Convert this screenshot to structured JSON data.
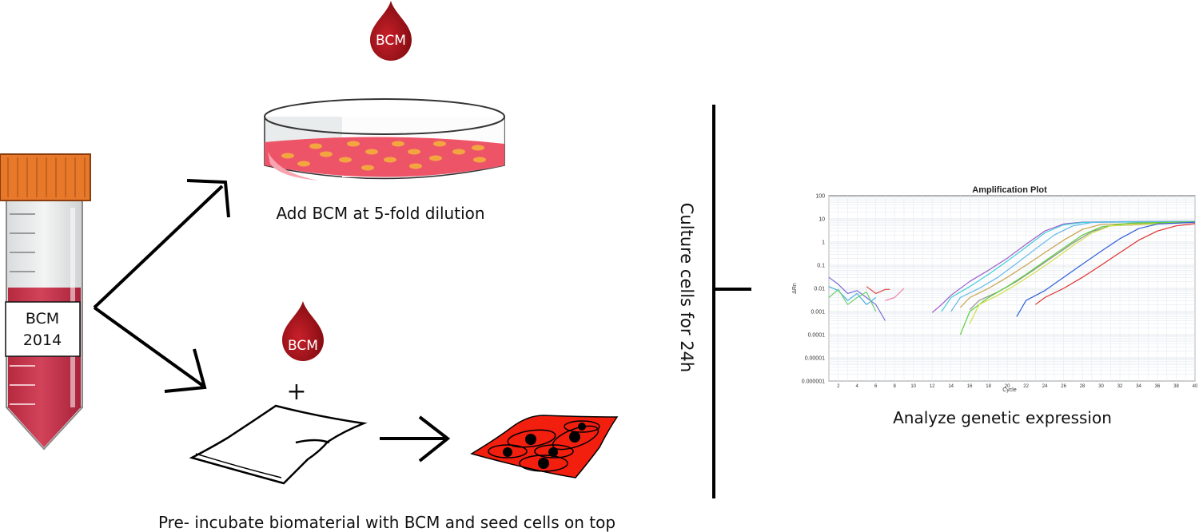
{
  "drops": {
    "top_label": "BCM",
    "bottom_label": "BCM"
  },
  "tube": {
    "label_line1": "BCM",
    "label_line2": "2014"
  },
  "plus_sign": "+",
  "captions": {
    "dish": "Add BCM at 5-fold dilution",
    "biomaterial": "Pre- incubate biomaterial with BCM and seed cells on top",
    "culture": "Culture cells for 24h",
    "analysis": "Analyze genetic expression"
  },
  "colors": {
    "blood": "#a81218",
    "tube_cap": "#e9792a",
    "tube_liquid": "#c6344a",
    "dish_medium": "#ee5468",
    "cell_spot": "#f3a640",
    "cell_sheet": "#f21f0f"
  },
  "chart_data": {
    "type": "line",
    "title": "Amplification Plot",
    "xlabel": "Cycle",
    "ylabel": "ΔRn",
    "xlim": [
      1,
      40
    ],
    "ylim": [
      1e-06,
      100
    ],
    "yscale": "log",
    "grid": true,
    "x_ticks": [
      "2",
      "4",
      "6",
      "8",
      "10",
      "12",
      "14",
      "16",
      "18",
      "20",
      "22",
      "24",
      "26",
      "28",
      "30",
      "32",
      "34",
      "36",
      "38",
      "40"
    ],
    "y_ticks": [
      "100",
      "10",
      "1",
      "0.1",
      "0.01",
      "0.001",
      "0.0001",
      "0.00001",
      "0.000001"
    ],
    "series": [
      {
        "color": "#9b59d0",
        "points": [
          [
            12,
            0.0009
          ],
          [
            13,
            0.002
          ],
          [
            14,
            0.005
          ],
          [
            16,
            0.02
          ],
          [
            18,
            0.06
          ],
          [
            20,
            0.2
          ],
          [
            22,
            0.8
          ],
          [
            24,
            3
          ],
          [
            26,
            6
          ],
          [
            28,
            7.2
          ],
          [
            32,
            7.6
          ],
          [
            40,
            7.8
          ]
        ]
      },
      {
        "color": "#3ecfd8",
        "points": [
          [
            13,
            0.001
          ],
          [
            14,
            0.004
          ],
          [
            16,
            0.012
          ],
          [
            18,
            0.04
          ],
          [
            20,
            0.15
          ],
          [
            22,
            0.6
          ],
          [
            24,
            2.5
          ],
          [
            26,
            5.5
          ],
          [
            28,
            7
          ],
          [
            32,
            7.5
          ],
          [
            40,
            7.7
          ]
        ]
      },
      {
        "color": "#60b8e8",
        "points": [
          [
            14,
            0.001
          ],
          [
            15,
            0.004
          ],
          [
            17,
            0.01
          ],
          [
            19,
            0.03
          ],
          [
            21,
            0.12
          ],
          [
            23,
            0.5
          ],
          [
            25,
            2
          ],
          [
            27,
            5
          ],
          [
            29,
            7
          ],
          [
            40,
            7.8
          ]
        ]
      },
      {
        "color": "#c8a24a",
        "points": [
          [
            15,
            0.0015
          ],
          [
            16,
            0.004
          ],
          [
            18,
            0.01
          ],
          [
            20,
            0.03
          ],
          [
            22,
            0.1
          ],
          [
            24,
            0.35
          ],
          [
            26,
            1.2
          ],
          [
            28,
            3.5
          ],
          [
            30,
            5.8
          ],
          [
            40,
            7.2
          ]
        ]
      },
      {
        "color": "#8f8f8f",
        "points": [
          [
            16,
            0.0012
          ],
          [
            17,
            0.003
          ],
          [
            19,
            0.007
          ],
          [
            21,
            0.02
          ],
          [
            23,
            0.07
          ],
          [
            25,
            0.25
          ],
          [
            27,
            0.9
          ],
          [
            29,
            2.8
          ],
          [
            31,
            5
          ],
          [
            40,
            7
          ]
        ]
      },
      {
        "color": "#5ccf3a",
        "points": [
          [
            15,
            0.0001
          ],
          [
            16,
            0.001
          ],
          [
            18,
            0.004
          ],
          [
            20,
            0.012
          ],
          [
            22,
            0.04
          ],
          [
            24,
            0.15
          ],
          [
            26,
            0.55
          ],
          [
            28,
            2
          ],
          [
            30,
            4.5
          ],
          [
            33,
            6.5
          ],
          [
            40,
            7.5
          ]
        ]
      },
      {
        "color": "#d4e04a",
        "points": [
          [
            16,
            0.0003
          ],
          [
            17,
            0.002
          ],
          [
            19,
            0.005
          ],
          [
            21,
            0.015
          ],
          [
            23,
            0.05
          ],
          [
            25,
            0.18
          ],
          [
            27,
            0.7
          ],
          [
            29,
            2.4
          ],
          [
            31,
            5
          ],
          [
            40,
            7.3
          ]
        ]
      },
      {
        "color": "#2f5fd8",
        "points": [
          [
            21,
            0.0006
          ],
          [
            22,
            0.003
          ],
          [
            24,
            0.008
          ],
          [
            26,
            0.03
          ],
          [
            28,
            0.11
          ],
          [
            30,
            0.4
          ],
          [
            32,
            1.4
          ],
          [
            34,
            3.8
          ],
          [
            36,
            6
          ],
          [
            40,
            7.2
          ]
        ]
      },
      {
        "color": "#e03030",
        "points": [
          [
            23,
            0.002
          ],
          [
            24,
            0.004
          ],
          [
            26,
            0.01
          ],
          [
            28,
            0.03
          ],
          [
            30,
            0.1
          ],
          [
            32,
            0.35
          ],
          [
            34,
            1.2
          ],
          [
            36,
            3
          ],
          [
            38,
            5
          ],
          [
            40,
            6.2
          ]
        ]
      },
      {
        "color": "#7a6ad8",
        "points": [
          [
            1,
            0.03
          ],
          [
            2,
            0.015
          ],
          [
            3,
            0.006
          ],
          [
            4,
            0.008
          ],
          [
            5,
            0.004
          ],
          [
            6,
            0.002
          ],
          [
            7,
            0.0004
          ]
        ]
      },
      {
        "color": "#48b0e0",
        "points": [
          [
            1,
            0.012
          ],
          [
            2,
            0.008
          ],
          [
            3,
            0.003
          ],
          [
            4,
            0.006
          ],
          [
            5,
            0.002
          ],
          [
            6,
            0.004
          ]
        ]
      },
      {
        "color": "#6fd06f",
        "points": [
          [
            1,
            0.004
          ],
          [
            2,
            0.009
          ],
          [
            3,
            0.002
          ],
          [
            4,
            0.004
          ],
          [
            5,
            0.007
          ],
          [
            6,
            0.001
          ]
        ]
      },
      {
        "color": "#e04848",
        "points": [
          [
            5,
            0.012
          ],
          [
            6,
            0.006
          ],
          [
            7,
            0.009
          ],
          [
            7.5,
            0.009
          ]
        ]
      },
      {
        "color": "#f080a0",
        "points": [
          [
            7,
            0.003
          ],
          [
            8,
            0.004
          ],
          [
            9,
            0.01
          ]
        ]
      }
    ]
  }
}
